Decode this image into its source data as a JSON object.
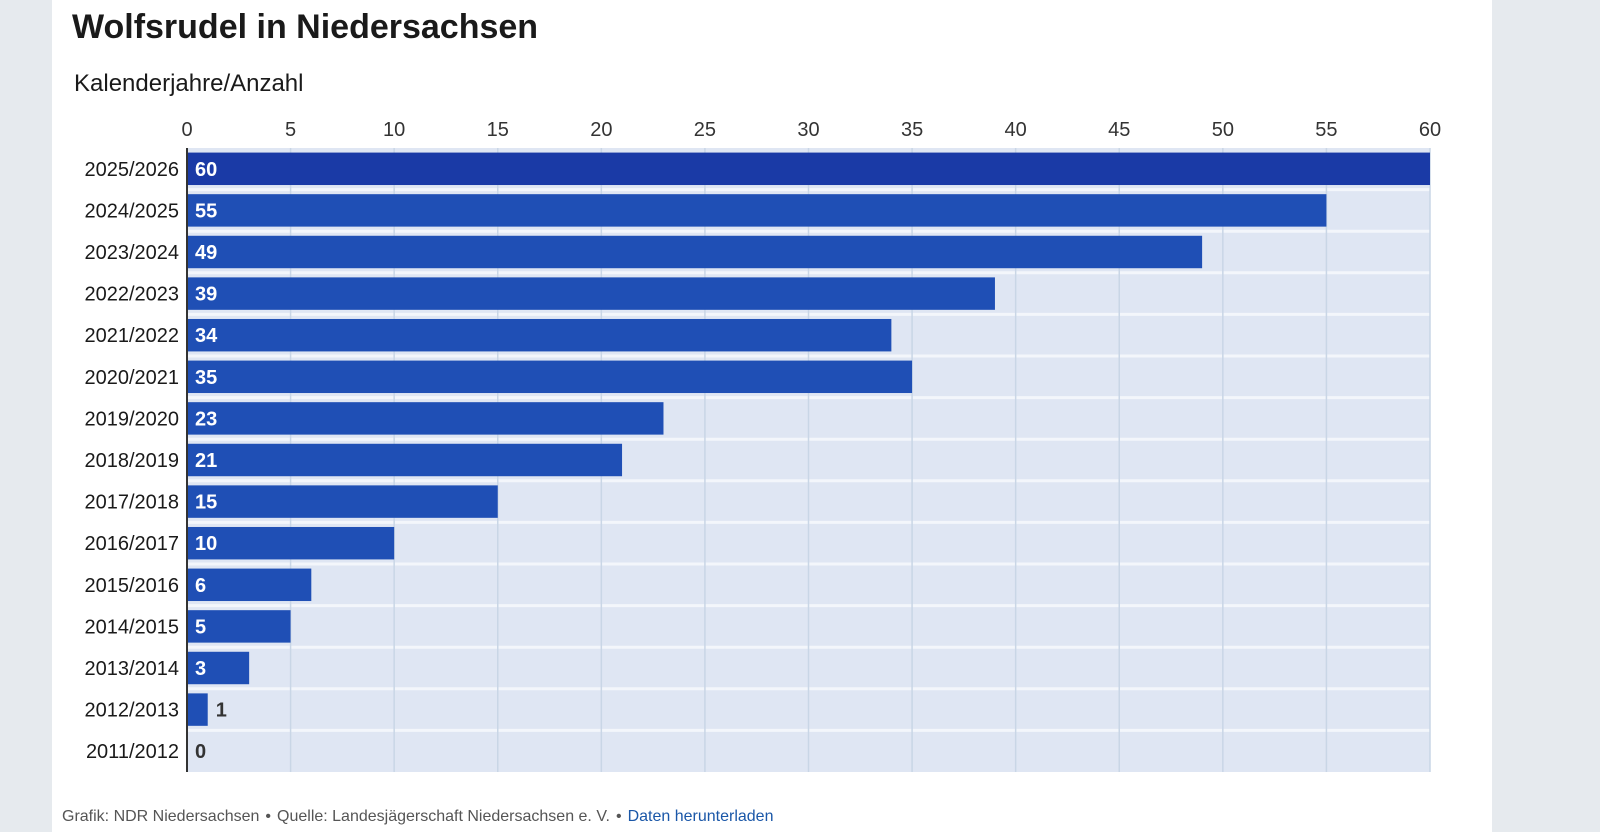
{
  "title": "Wolfsrudel in Niedersachsen",
  "subtitle": "Kalenderjahre/Anzahl",
  "footer": {
    "credit": "Grafik: NDR Niedersachsen",
    "source": "Quelle: Landesjägerschaft Niedersachsen e. V.",
    "separator": "•",
    "download_label": "Daten herunterladen"
  },
  "colors": {
    "bar": "#1f4fb5",
    "bar_top": "#1a3aa6",
    "grid": "#c9d6e6",
    "plot_bg": "#dfe6f3"
  },
  "chart_data": {
    "type": "bar",
    "orientation": "horizontal",
    "categories": [
      "2025/2026",
      "2024/2025",
      "2023/2024",
      "2022/2023",
      "2021/2022",
      "2020/2021",
      "2019/2020",
      "2018/2019",
      "2017/2018",
      "2016/2017",
      "2015/2016",
      "2014/2015",
      "2013/2014",
      "2012/2013",
      "2011/2012"
    ],
    "values": [
      60,
      55,
      49,
      39,
      34,
      35,
      23,
      21,
      15,
      10,
      6,
      5,
      3,
      1,
      0
    ],
    "xlim": [
      0,
      60
    ],
    "xticks": [
      0,
      5,
      10,
      15,
      20,
      25,
      30,
      35,
      40,
      45,
      50,
      55,
      60
    ],
    "grid": true,
    "data_labels": true
  }
}
